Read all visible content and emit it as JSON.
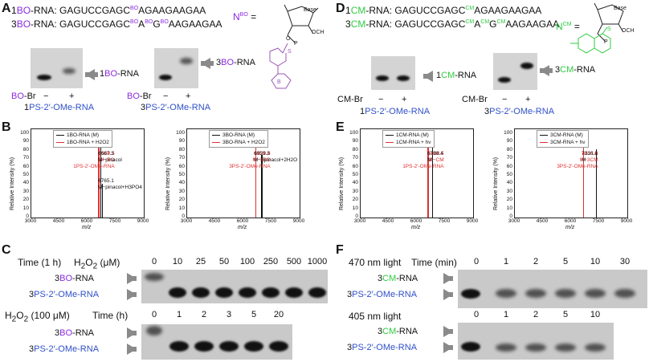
{
  "panels": {
    "A": "A",
    "B": "B",
    "C": "C",
    "D": "D",
    "E": "E",
    "F": "F"
  },
  "panelA": {
    "seq1_prefix": "1",
    "seq1_tag": "BO",
    "seq1_mid": "-RNA: GAGUCCGAGC",
    "seq1_sup": "BO",
    "seq1_end": "AGAAGAAGAA",
    "seq2_prefix": "3",
    "seq2_tag": "BO",
    "seq2_mid": "-RNA: GAGUCCGAGC",
    "seq2_sup1": "BO",
    "seq2_a": "A",
    "seq2_sup2": "BO",
    "seq2_g": "G",
    "seq2_sup3": "BO",
    "seq2_end": "AAGAAGAA",
    "nbo_n": "N",
    "nbo_sup": "BO",
    "nbo_eq": "=",
    "struct_base": "Base",
    "struct_och3": "OCH",
    "struct_o": "O",
    "struct_p": "P",
    "struct_s": "S",
    "struct_b": "B",
    "gel1_label_num": "1",
    "gel1_label_tag": "BO",
    "gel1_label_rest": "-RNA",
    "gel2_label_num": "3",
    "gel2_label_tag": "BO",
    "gel2_label_rest": "-RNA",
    "reagent_tag": "BO",
    "reagent_rest": "-Br",
    "minus": "−",
    "plus": "+",
    "ps1_num": "1",
    "ps1_rest": "PS-2′-OMe-RNA",
    "ps3_num": "3",
    "ps3_rest": "PS-2′-OMe-RNA"
  },
  "panelD": {
    "seq1_prefix": "1",
    "seq1_tag": "CM",
    "seq1_mid": "-RNA: GAGUCCGAGC",
    "seq1_sup": "CM",
    "seq1_end": "AGAAGAAGAA",
    "seq2_prefix": "3",
    "seq2_tag": "CM",
    "seq2_mid": "-RNA: GAGUCCGAGC",
    "seq2_sup1": "CM",
    "seq2_a": "A",
    "seq2_sup2": "CM",
    "seq2_g": "G",
    "seq2_sup3": "CM",
    "seq2_end": "AAGAAGAA",
    "ncm_n": "N",
    "ncm_sup": "CM",
    "ncm_eq": "=",
    "gel1_label_num": "1",
    "gel1_label_tag": "CM",
    "gel1_label_rest": "-RNA",
    "gel2_label_num": "3",
    "gel2_label_tag": "CM",
    "gel2_label_rest": "-RNA",
    "reagent": "CM-Br",
    "minus": "−",
    "plus": "+",
    "ps1_num": "1",
    "ps1_rest": "PS-2′-OMe-RNA",
    "ps3_num": "3",
    "ps3_rest": "PS-2′-OMe-RNA"
  },
  "chart_data": [
    {
      "type": "line",
      "panel": "B",
      "ylabel": "Relative Intensity (%)",
      "xlabel": "m/z",
      "xlim": [
        3000,
        9000
      ],
      "ylim": [
        0,
        100
      ],
      "xticks": [
        "3000",
        "4500",
        "6000",
        "7500",
        "9000"
      ],
      "yticks": [
        "0",
        "10",
        "20",
        "30",
        "40",
        "50",
        "60",
        "70",
        "80",
        "90",
        "100"
      ],
      "legend": [
        "1BO-RNA (M)",
        "1BO-RNA + H2O2"
      ],
      "annotations": [
        "6569.5",
        "M−BO",
        "1PS-2′-OMe-RNA",
        "6667.3",
        "M−pinacol",
        "6765.1",
        "M−pinacol+H3PO4"
      ],
      "series": [
        {
          "name": "1BO-RNA (M)",
          "peaks": [
            [
              6667.3,
              88
            ],
            [
              6765.1,
              40
            ]
          ]
        },
        {
          "name": "1BO-RNA + H2O2",
          "peaks": [
            [
              6569.5,
              100
            ]
          ]
        }
      ]
    },
    {
      "type": "line",
      "panel": "B",
      "ylabel": "Relative Intensity (%)",
      "xlabel": "m/z",
      "xlim": [
        3000,
        9000
      ],
      "ylim": [
        0,
        100
      ],
      "xticks": [
        "3000",
        "4500",
        "6000",
        "7500",
        "9000"
      ],
      "yticks": [
        "0",
        "10",
        "20",
        "30",
        "40",
        "50",
        "60",
        "70",
        "80",
        "90",
        "100"
      ],
      "legend": [
        "3BO-RNA (M)",
        "3BO-RNA + H2O2"
      ],
      "annotations": [
        "6629.6",
        "M−3BO",
        "3PS-2′-OMe-RNA",
        "6959.3",
        "M−3pinacol+2H2O"
      ],
      "series": [
        {
          "name": "3BO-RNA (M)",
          "peaks": [
            [
              6959.3,
              75
            ]
          ]
        },
        {
          "name": "3BO-RNA + H2O2",
          "peaks": [
            [
              6629.6,
              100
            ]
          ]
        }
      ]
    },
    {
      "type": "line",
      "panel": "E",
      "ylabel": "Relative Intensity (%)",
      "xlabel": "m/z",
      "xlim": [
        3000,
        9000
      ],
      "ylim": [
        0,
        100
      ],
      "xticks": [
        "3000",
        "4500",
        "6000",
        "7500",
        "9000"
      ],
      "yticks": [
        "0",
        "10",
        "20",
        "30",
        "40",
        "50",
        "60",
        "70",
        "80",
        "90",
        "100"
      ],
      "legend": [
        "1CM-RNA (M)",
        "1CM-RNA + hν"
      ],
      "annotations": [
        "6568.5",
        "M−CM",
        "1PS-2′-OMe-RNA",
        "6798.4",
        "M"
      ],
      "series": [
        {
          "name": "1CM-RNA (M)",
          "peaks": [
            [
              6798.4,
              85
            ]
          ]
        },
        {
          "name": "1CM-RNA + hν",
          "peaks": [
            [
              6568.5,
              100
            ]
          ]
        }
      ]
    },
    {
      "type": "line",
      "panel": "E",
      "ylabel": "Relative Intensity (%)",
      "xlabel": "m/z",
      "xlim": [
        3000,
        9000
      ],
      "ylim": [
        0,
        100
      ],
      "xticks": [
        "3000",
        "4500",
        "6000",
        "7500",
        "9000"
      ],
      "yticks": [
        "0",
        "10",
        "20",
        "30",
        "40",
        "50",
        "60",
        "70",
        "80",
        "90",
        "100"
      ],
      "legend": [
        "3CM-RNA (M)",
        "3CM-RNA + hν"
      ],
      "annotations": [
        "6631.6",
        "M−3CM",
        "3PS-2′-OMe-RNA",
        "7316.8",
        "M"
      ],
      "series": [
        {
          "name": "3CM-RNA (M)",
          "peaks": [
            [
              7316.8,
              82
            ]
          ]
        },
        {
          "name": "3CM-RNA + hν",
          "peaks": [
            [
              6631.6,
              100
            ]
          ]
        }
      ]
    }
  ],
  "panelC": {
    "row1_time": "Time (1 h)",
    "row1_reagent": "H",
    "row1_reagent_sub": "2",
    "row1_reagent_o": "O",
    "row1_reagent_sub2": "2",
    "row1_unit": " (μM)",
    "row1_cols": [
      "0",
      "10",
      "25",
      "50",
      "100",
      "250",
      "500",
      "1000"
    ],
    "row2_reagent": "H",
    "row2_sub": "2",
    "row2_o": "O",
    "row2_sub2": "2",
    "row2_rest": " (100 μM)",
    "row2_time": "Time (h)",
    "row2_cols": [
      "0",
      "1",
      "2",
      "3",
      "5",
      "20"
    ],
    "lab_bo_num": "3",
    "lab_bo_tag": "BO",
    "lab_bo_rest": "-RNA",
    "lab_ps_num": "3",
    "lab_ps_rest": "PS-2′-OMe-RNA"
  },
  "panelF": {
    "row1_light": "470 nm light",
    "row1_time": "Time (min)",
    "row1_cols": [
      "0",
      "1",
      "2",
      "5",
      "10",
      "30"
    ],
    "row2_light": "405 nm light",
    "row2_cols": [
      "0",
      "1",
      "2",
      "5",
      "10"
    ],
    "lab_cm_num": "3",
    "lab_cm_tag": "CM",
    "lab_cm_rest": "-RNA",
    "lab_ps_num": "3",
    "lab_ps_rest": "PS-2′-OMe-RNA"
  }
}
